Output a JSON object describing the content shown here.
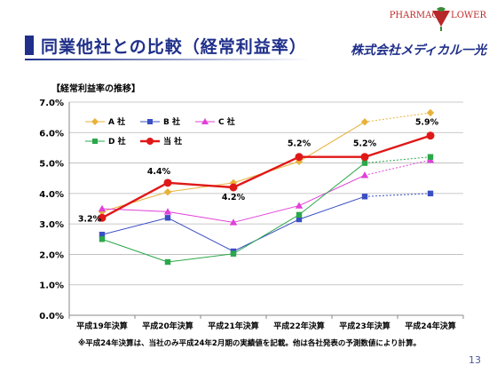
{
  "slide": {
    "title": "同業他社との比較（経常利益率）",
    "page_number": "13",
    "footnote": "※平成24年決算は、当社のみ平成24年2月期の実績値を記載。他は各社発表の予測数値により計算。"
  },
  "logo": {
    "brand_text": "PHARMAC ▼ LOWER",
    "company_text": "株式会社メディカル一光",
    "accent_color": "#c02a2a"
  },
  "chart_data": {
    "type": "line",
    "title": "【経常利益率の推移】",
    "categories": [
      "平成19年決算",
      "平成20年決算",
      "平成21年決算",
      "平成22年決算",
      "平成23年決算",
      "平成24年決算"
    ],
    "ylim": [
      0,
      7
    ],
    "yticks": [
      "0.0%",
      "1.0%",
      "2.0%",
      "3.0%",
      "4.0%",
      "5.0%",
      "6.0%",
      "7.0%"
    ],
    "grid": true,
    "legend_position": "top-left",
    "series": [
      {
        "name": "A 社",
        "color": "#e8b23a",
        "marker": "diamond",
        "values": [
          3.4,
          4.05,
          4.35,
          5.05,
          6.35,
          6.65
        ],
        "dashed_last": true
      },
      {
        "name": "B 社",
        "color": "#3a4fc4",
        "marker": "square",
        "values": [
          2.65,
          3.2,
          2.1,
          3.15,
          3.9,
          4.0
        ],
        "dashed_last": true
      },
      {
        "name": "C 社",
        "color": "#e040d8",
        "marker": "triangle",
        "values": [
          3.5,
          3.4,
          3.05,
          3.6,
          4.6,
          5.1
        ],
        "dashed_last": true
      },
      {
        "name": "D 社",
        "color": "#2aa84a",
        "marker": "square",
        "values": [
          2.5,
          1.75,
          2.02,
          3.3,
          5.0,
          5.2
        ],
        "dashed_last": true
      },
      {
        "name": "当 社",
        "color": "#e01818",
        "marker": "circle",
        "values": [
          3.2,
          4.35,
          4.2,
          5.2,
          5.2,
          5.9
        ],
        "dashed_last": false,
        "bold": true
      }
    ],
    "data_labels": [
      "3.2%",
      "4.4%",
      "4.2%",
      "5.2%",
      "5.2%",
      "5.9%"
    ]
  }
}
